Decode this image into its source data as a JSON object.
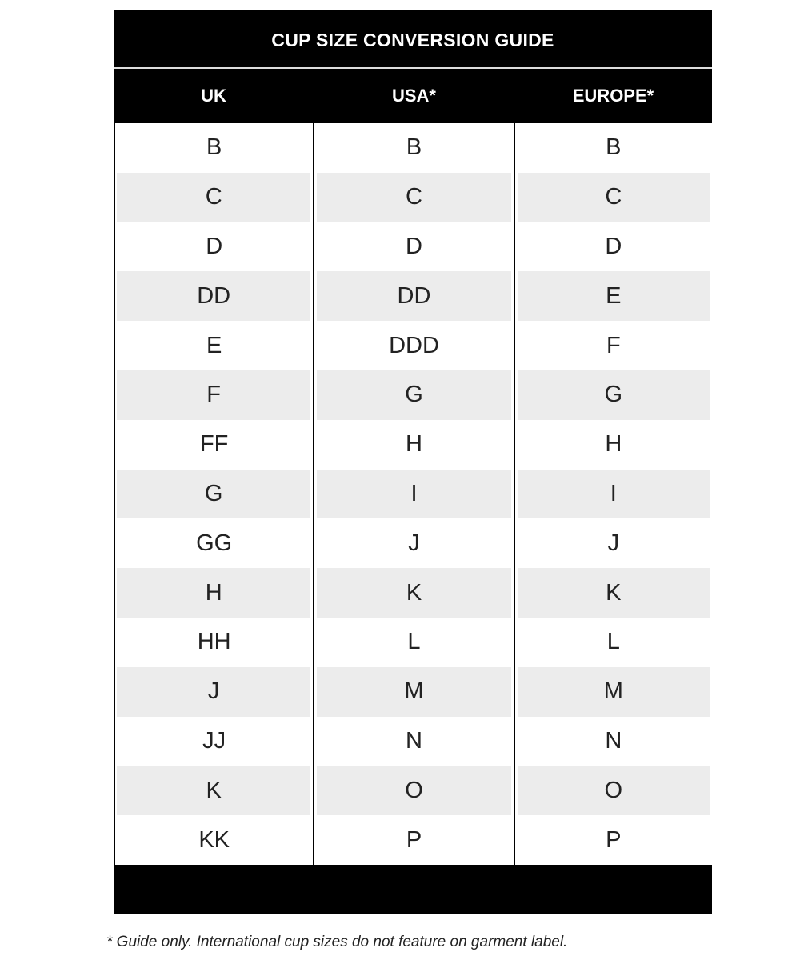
{
  "title": "CUP SIZE CONVERSION GUIDE",
  "columns": [
    "UK",
    "USA*",
    "EUROPE*"
  ],
  "rows": [
    [
      "B",
      "B",
      "B"
    ],
    [
      "C",
      "C",
      "C"
    ],
    [
      "D",
      "D",
      "D"
    ],
    [
      "DD",
      "DD",
      "E"
    ],
    [
      "E",
      "DDD",
      "F"
    ],
    [
      "F",
      "G",
      "G"
    ],
    [
      "FF",
      "H",
      "H"
    ],
    [
      "G",
      "I",
      "I"
    ],
    [
      "GG",
      "J",
      "J"
    ],
    [
      "H",
      "K",
      "K"
    ],
    [
      "HH",
      "L",
      "L"
    ],
    [
      "J",
      "M",
      "M"
    ],
    [
      "JJ",
      "N",
      "N"
    ],
    [
      "K",
      "O",
      "O"
    ],
    [
      "KK",
      "P",
      "P"
    ]
  ],
  "footnote": "* Guide only. International cup sizes do not feature on garment label.",
  "colors": {
    "header_bg": "#000000",
    "stripe": "#ececec"
  }
}
